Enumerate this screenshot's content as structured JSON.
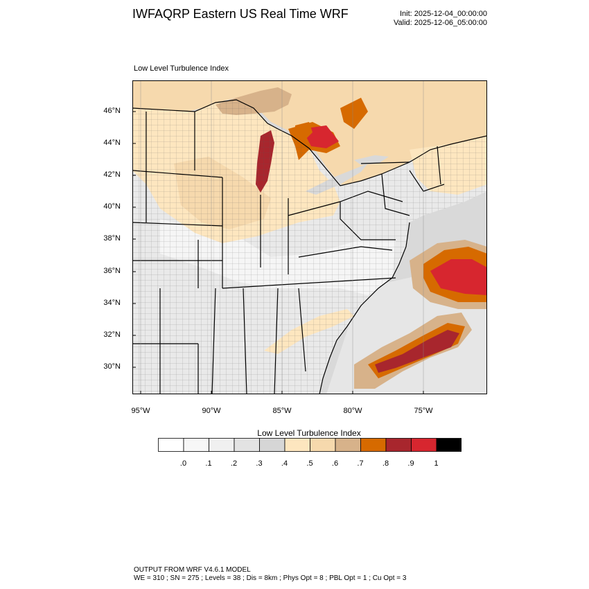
{
  "header": {
    "title": "IWFAQRP Eastern US Real Time WRF",
    "init": "Init: 2025-12-04_00:00:00",
    "valid": "Valid: 2025-12-06_05:00:00"
  },
  "map": {
    "subtitle": "Low Level Turbulence Index",
    "lat_labels": [
      "46°N",
      "44°N",
      "42°N",
      "40°N",
      "38°N",
      "36°N",
      "34°N",
      "32°N",
      "30°N"
    ],
    "lon_labels": [
      "95°W",
      "90°W",
      "85°W",
      "80°W",
      "75°W"
    ],
    "colors": {
      "water": "#d9d9d9",
      "land_low": "#f2f2f2",
      "tan_light": "#fde6bf",
      "tan": "#f6d9ad",
      "tan_dark": "#d7b28a",
      "orange": "#d66a00",
      "darkred": "#a8262d",
      "red": "#d7262f"
    }
  },
  "colorbar": {
    "title": "Low Level Turbulence Index",
    "colors": [
      "#ffffff",
      "#f7f7f7",
      "#f0f0f0",
      "#e3e3e3",
      "#d6d6d6",
      "#fde6bf",
      "#f6d9ad",
      "#d7b28a",
      "#d66a00",
      "#a8262d",
      "#d7262f",
      "#000000"
    ],
    "labels": [
      ".0",
      ".1",
      ".2",
      ".3",
      ".4",
      ".5",
      ".6",
      ".7",
      ".8",
      ".9",
      "1"
    ]
  },
  "footer": {
    "line1": "OUTPUT FROM WRF V4.6.1 MODEL",
    "line2": "WE = 310 ; SN = 275 ; Levels = 38 ; Dis = 8km ; Phys Opt = 8 ; PBL Opt = 1 ; Cu Opt = 3"
  }
}
